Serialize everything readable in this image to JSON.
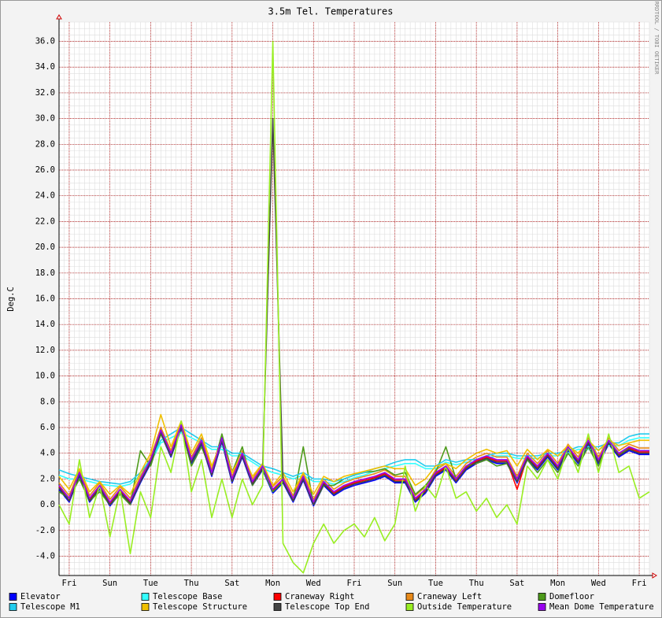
{
  "chart_data": {
    "type": "line",
    "title": "3.5m Tel. Temperatures",
    "y_label": "Deg.C",
    "watermark": "RRDTOOL / TOBI OETIKER",
    "grid": true,
    "xlim": [
      0,
      29
    ],
    "ylim": [
      -5.5,
      37.5
    ],
    "xticks": [
      {
        "value": 0.5,
        "label": "Fri"
      },
      {
        "value": 2.5,
        "label": "Sun"
      },
      {
        "value": 4.5,
        "label": "Tue"
      },
      {
        "value": 6.5,
        "label": "Thu"
      },
      {
        "value": 8.5,
        "label": "Sat"
      },
      {
        "value": 10.5,
        "label": "Mon"
      },
      {
        "value": 12.5,
        "label": "Wed"
      },
      {
        "value": 14.5,
        "label": "Fri"
      },
      {
        "value": 16.5,
        "label": "Sun"
      },
      {
        "value": 18.5,
        "label": "Tue"
      },
      {
        "value": 20.5,
        "label": "Thu"
      },
      {
        "value": 22.5,
        "label": "Sat"
      },
      {
        "value": 24.5,
        "label": "Mon"
      },
      {
        "value": 26.5,
        "label": "Wed"
      },
      {
        "value": 28.5,
        "label": "Fri"
      }
    ],
    "yticks": [
      {
        "value": -4,
        "label": "-4.0"
      },
      {
        "value": -2,
        "label": "-2.0"
      },
      {
        "value": 0,
        "label": "0.0"
      },
      {
        "value": 2,
        "label": "2.0"
      },
      {
        "value": 4,
        "label": "4.0"
      },
      {
        "value": 6,
        "label": "6.0"
      },
      {
        "value": 8,
        "label": "8.0"
      },
      {
        "value": 10,
        "label": "10.0"
      },
      {
        "value": 12,
        "label": "12.0"
      },
      {
        "value": 14,
        "label": "14.0"
      },
      {
        "value": 16,
        "label": "16.0"
      },
      {
        "value": 18,
        "label": "18.0"
      },
      {
        "value": 20,
        "label": "20.0"
      },
      {
        "value": 22,
        "label": "22.0"
      },
      {
        "value": 24,
        "label": "24.0"
      },
      {
        "value": 26,
        "label": "26.0"
      },
      {
        "value": 28,
        "label": "28.0"
      },
      {
        "value": 30,
        "label": "30.0"
      },
      {
        "value": 32,
        "label": "32.0"
      },
      {
        "value": 34,
        "label": "34.0"
      },
      {
        "value": 36,
        "label": "36.0"
      }
    ],
    "x": [
      0,
      0.5,
      1,
      1.5,
      2,
      2.5,
      3,
      3.5,
      4,
      4.5,
      5,
      5.5,
      6,
      6.5,
      7,
      7.5,
      8,
      8.5,
      9,
      9.5,
      10,
      10.5,
      11,
      11.5,
      12,
      12.5,
      13,
      13.5,
      14,
      14.5,
      15,
      15.5,
      16,
      16.5,
      17,
      17.5,
      18,
      18.5,
      19,
      19.5,
      20,
      20.5,
      21,
      21.5,
      22,
      22.5,
      23,
      23.5,
      24,
      24.5,
      25,
      25.5,
      26,
      26.5,
      27,
      27.5,
      28,
      28.5,
      29
    ],
    "series": [
      {
        "name": "Elevator",
        "color": "#0000ff",
        "values": [
          1.2,
          0.2,
          2.2,
          0.2,
          1.2,
          -0.1,
          0.9,
          0.0,
          1.7,
          3.2,
          5.5,
          3.7,
          5.9,
          3.2,
          4.7,
          2.2,
          4.9,
          1.7,
          3.7,
          1.5,
          2.7,
          0.9,
          1.7,
          0.2,
          1.9,
          -0.1,
          1.5,
          0.7,
          1.2,
          1.5,
          1.7,
          1.9,
          2.2,
          1.7,
          1.7,
          0.2,
          0.9,
          2.2,
          2.7,
          1.7,
          2.7,
          3.2,
          3.5,
          3.2,
          3.2,
          1.7,
          3.5,
          2.7,
          3.7,
          2.7,
          4.2,
          3.2,
          4.7,
          3.2,
          4.7,
          3.7,
          4.2,
          3.9,
          3.9
        ]
      },
      {
        "name": "Telescope Base",
        "color": "#33ffff",
        "values": [
          2.3,
          2.0,
          2.0,
          1.8,
          1.6,
          1.5,
          1.4,
          1.6,
          2.3,
          3.3,
          4.8,
          5.2,
          5.6,
          5.2,
          4.8,
          4.3,
          4.3,
          3.8,
          3.8,
          3.3,
          2.8,
          2.5,
          2.3,
          2.0,
          2.3,
          1.8,
          1.8,
          1.6,
          1.8,
          2.1,
          2.3,
          2.6,
          2.8,
          3.0,
          3.2,
          3.2,
          2.8,
          2.8,
          3.3,
          3.1,
          3.3,
          3.3,
          3.6,
          3.8,
          3.8,
          3.6,
          3.6,
          3.6,
          3.8,
          3.8,
          4.0,
          4.3,
          4.3,
          4.3,
          4.6,
          4.6,
          5.0,
          5.2,
          5.2
        ]
      },
      {
        "name": "Craneway Right",
        "color": "#ff0000",
        "values": [
          1.4,
          0.3,
          2.4,
          0.4,
          1.4,
          0.1,
          1.1,
          0.2,
          1.9,
          3.4,
          5.7,
          3.9,
          6.1,
          3.4,
          4.9,
          2.4,
          5.1,
          1.9,
          3.9,
          1.7,
          2.9,
          1.1,
          1.9,
          0.4,
          2.1,
          0.1,
          1.7,
          0.9,
          1.4,
          1.7,
          1.9,
          2.1,
          2.4,
          1.9,
          1.9,
          0.4,
          1.1,
          2.4,
          2.9,
          1.9,
          2.9,
          3.4,
          3.7,
          3.4,
          3.4,
          1.2,
          3.7,
          2.9,
          3.9,
          2.9,
          4.4,
          3.4,
          4.9,
          3.4,
          4.9,
          3.9,
          4.4,
          4.1,
          4.1
        ]
      },
      {
        "name": "Craneway Left",
        "color": "#e88a1a",
        "values": [
          1.7,
          0.7,
          2.7,
          0.7,
          1.7,
          0.4,
          1.4,
          0.5,
          2.2,
          3.7,
          6.0,
          4.2,
          6.4,
          3.7,
          5.2,
          2.7,
          5.4,
          2.2,
          4.2,
          2.0,
          3.2,
          1.4,
          2.2,
          0.7,
          2.4,
          0.4,
          2.0,
          1.2,
          1.7,
          2.0,
          2.2,
          2.4,
          2.7,
          2.2,
          2.2,
          0.7,
          1.4,
          2.7,
          3.2,
          2.2,
          3.2,
          3.7,
          4.0,
          3.7,
          3.7,
          2.2,
          4.0,
          3.2,
          4.2,
          3.2,
          4.7,
          3.7,
          5.2,
          3.7,
          5.2,
          4.2,
          4.7,
          4.4,
          4.4
        ]
      },
      {
        "name": "Domefloor",
        "color": "#4d9a1a",
        "values": [
          1.0,
          0.5,
          2.0,
          0.3,
          1.0,
          0.0,
          0.8,
          0.0,
          4.2,
          3.0,
          5.5,
          3.8,
          6.0,
          3.0,
          4.5,
          2.5,
          5.5,
          2.5,
          4.5,
          1.5,
          2.8,
          1.0,
          1.8,
          0.3,
          4.5,
          0.0,
          1.5,
          1.5,
          2.0,
          2.3,
          2.5,
          2.6,
          2.8,
          2.3,
          2.5,
          0.8,
          1.5,
          2.5,
          4.5,
          2.0,
          3.0,
          3.2,
          3.5,
          3.0,
          3.2,
          1.8,
          3.5,
          2.5,
          3.5,
          2.5,
          4.0,
          3.0,
          4.5,
          3.0,
          5.0,
          3.8,
          4.5,
          4.2,
          4.2
        ]
      },
      {
        "name": "Telescope M1",
        "color": "#22ccee",
        "values": [
          2.7,
          2.4,
          2.2,
          2.0,
          1.8,
          1.7,
          1.6,
          1.8,
          2.5,
          3.5,
          5.0,
          5.5,
          6.0,
          5.5,
          5.0,
          4.5,
          4.5,
          4.0,
          4.0,
          3.5,
          3.0,
          2.8,
          2.5,
          2.2,
          2.5,
          2.0,
          2.0,
          1.8,
          2.0,
          2.3,
          2.5,
          2.8,
          3.0,
          3.3,
          3.5,
          3.5,
          3.0,
          3.0,
          3.5,
          3.3,
          3.5,
          3.5,
          3.8,
          4.0,
          4.0,
          3.8,
          3.8,
          3.8,
          4.0,
          4.0,
          4.2,
          4.5,
          4.5,
          4.5,
          4.8,
          4.8,
          5.3,
          5.5,
          5.5
        ]
      },
      {
        "name": "Telescope Structure",
        "color": "#f0c000",
        "values": [
          2.2,
          1.2,
          2.8,
          1.0,
          1.8,
          0.8,
          1.5,
          0.8,
          2.5,
          4.0,
          7.0,
          4.5,
          6.5,
          4.0,
          5.5,
          3.0,
          5.0,
          2.5,
          4.0,
          2.2,
          3.2,
          1.5,
          2.5,
          1.0,
          2.5,
          0.8,
          2.2,
          1.8,
          2.2,
          2.4,
          2.6,
          2.8,
          3.0,
          2.8,
          2.8,
          1.5,
          2.0,
          3.0,
          3.2,
          2.8,
          3.5,
          4.0,
          4.3,
          4.0,
          4.2,
          3.0,
          4.3,
          3.5,
          4.3,
          3.8,
          4.6,
          4.0,
          5.0,
          4.2,
          5.0,
          4.6,
          4.8,
          5.0,
          5.0
        ]
      },
      {
        "name": "Telescope Top End",
        "color": "#444444",
        "values": [
          1.3,
          0.3,
          2.3,
          0.3,
          1.3,
          0.0,
          1.0,
          0.1,
          1.8,
          3.3,
          5.6,
          3.8,
          6.0,
          3.3,
          4.8,
          2.3,
          5.0,
          1.8,
          3.8,
          1.6,
          2.8,
          30.0,
          1.8,
          0.3,
          2.0,
          0.0,
          1.6,
          0.8,
          1.3,
          1.6,
          1.8,
          2.0,
          2.3,
          1.8,
          1.8,
          0.3,
          1.0,
          2.3,
          2.8,
          1.8,
          2.8,
          3.3,
          3.6,
          3.3,
          3.3,
          1.8,
          3.6,
          2.8,
          3.8,
          2.8,
          4.3,
          3.3,
          4.8,
          3.3,
          4.8,
          3.8,
          4.3,
          4.0,
          4.0
        ]
      },
      {
        "name": "Outside Temperature",
        "color": "#99ee22",
        "values": [
          0,
          -1.5,
          3.5,
          -1.0,
          1.5,
          -2.5,
          1.2,
          -3.8,
          1.0,
          -1.0,
          4.5,
          2.5,
          6.5,
          1.0,
          3.5,
          -1.0,
          2.0,
          -1.0,
          2.0,
          0.0,
          1.5,
          36.0,
          -3.0,
          -4.5,
          -5.3,
          -3.0,
          -1.5,
          -3.0,
          -2.0,
          -1.5,
          -2.5,
          -1.0,
          -2.8,
          -1.5,
          3.0,
          -0.5,
          1.5,
          0.5,
          3.0,
          0.5,
          1.0,
          -0.5,
          0.5,
          -1.0,
          0.0,
          -1.5,
          3.0,
          2.0,
          3.5,
          2.0,
          4.5,
          2.5,
          5.5,
          2.5,
          5.5,
          2.5,
          3.0,
          0.5,
          1.0
        ]
      },
      {
        "name": "Mean Dome Temperature",
        "color": "#9900ee",
        "values": [
          1.5,
          0.5,
          2.5,
          0.5,
          1.5,
          0.2,
          1.2,
          0.3,
          2.0,
          3.5,
          5.8,
          4.0,
          6.2,
          3.5,
          5.0,
          2.5,
          5.2,
          2.0,
          4.0,
          1.8,
          3.0,
          1.2,
          2.0,
          0.5,
          2.2,
          0.2,
          1.8,
          1.0,
          1.5,
          1.8,
          2.0,
          2.2,
          2.5,
          2.0,
          2.0,
          0.5,
          1.2,
          2.5,
          3.0,
          2.0,
          3.0,
          3.5,
          3.8,
          3.5,
          3.5,
          2.0,
          3.8,
          3.0,
          4.0,
          3.0,
          4.5,
          3.5,
          5.0,
          3.5,
          5.0,
          4.0,
          4.5,
          4.2,
          4.2
        ]
      }
    ]
  }
}
